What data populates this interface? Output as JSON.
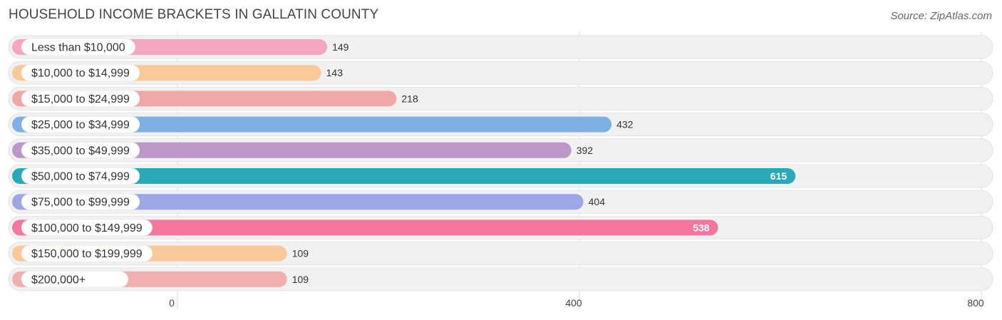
{
  "title": "HOUSEHOLD INCOME BRACKETS IN GALLATIN COUNTY",
  "source": "Source: ZipAtlas.com",
  "chart_data": {
    "type": "bar",
    "orientation": "horizontal",
    "title": "HOUSEHOLD INCOME BRACKETS IN GALLATIN COUNTY",
    "categories": [
      "Less than $10,000",
      "$10,000 to $14,999",
      "$15,000 to $24,999",
      "$25,000 to $34,999",
      "$35,000 to $49,999",
      "$50,000 to $74,999",
      "$75,000 to $99,999",
      "$100,000 to $149,999",
      "$150,000 to $199,999",
      "$200,000+"
    ],
    "values": [
      149,
      143,
      218,
      432,
      392,
      615,
      404,
      538,
      109,
      109
    ],
    "value_labels": [
      "149",
      "143",
      "218",
      "432",
      "392",
      "615",
      "404",
      "538",
      "109",
      "109"
    ],
    "colors": [
      "#f7a6c1",
      "#f9c99a",
      "#f0a8a6",
      "#7fb0e3",
      "#bb98c8",
      "#29a9b8",
      "#9da7e6",
      "#f5779e",
      "#f9c99a",
      "#f0b0ae"
    ],
    "xlim": [
      0,
      800
    ],
    "xticks": [
      0,
      400,
      800
    ],
    "xtick_labels": [
      "0",
      "400",
      "800"
    ],
    "grid": true,
    "xlabel": "",
    "ylabel": ""
  }
}
